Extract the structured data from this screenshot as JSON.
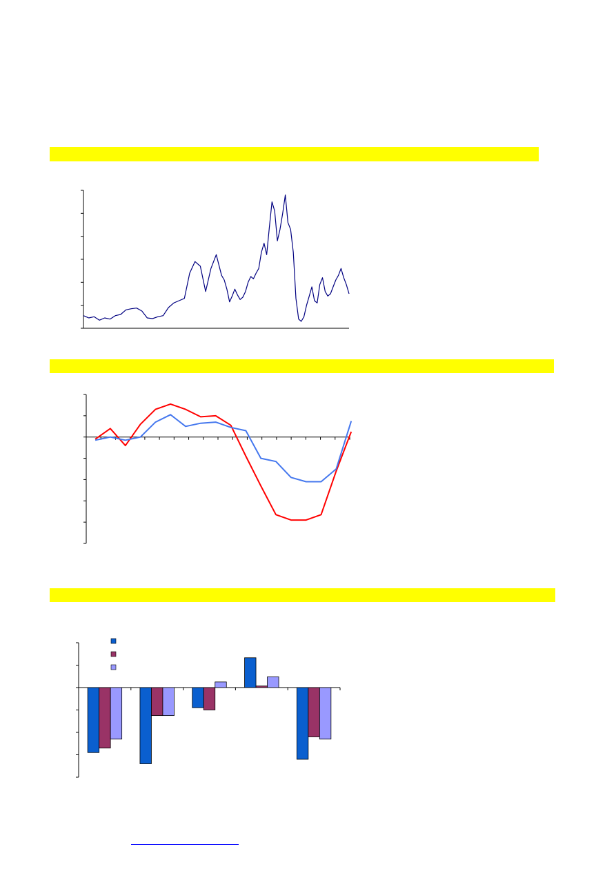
{
  "colors": {
    "highlight": "#ffff00",
    "axis": "#000000",
    "price_line": "#000080",
    "line_red": "#ff0000",
    "line_blue": "#4477ee",
    "bar_series_1": "#0a5fcf",
    "bar_series_2": "#993366",
    "bar_series_3": "#9999ff",
    "link": "#0000ff"
  },
  "sections": [
    {
      "title": ""
    },
    {
      "title": ""
    },
    {
      "title": ""
    }
  ],
  "footer": {
    "link_text": ""
  },
  "chart_data": [
    {
      "type": "line",
      "title": "",
      "xlabel": "",
      "ylabel": "",
      "ylim": [
        0,
        6
      ],
      "yticks": 6,
      "grid": false,
      "series": [
        {
          "color": "#000080",
          "x": [
            0,
            2,
            4,
            6,
            8,
            10,
            12,
            14,
            16,
            18,
            20,
            22,
            24,
            26,
            28,
            30,
            32,
            34,
            36,
            38,
            40,
            42,
            44,
            46,
            48,
            50,
            52,
            53,
            54,
            55,
            56,
            57,
            58,
            59,
            60,
            61,
            62,
            63,
            64,
            65,
            66,
            67,
            68,
            69,
            70,
            71,
            72,
            73,
            74,
            75,
            76,
            77,
            78,
            79,
            80,
            81,
            82,
            83,
            84,
            85,
            86,
            87,
            88,
            89,
            90,
            91,
            92,
            93,
            94,
            95,
            96,
            97,
            98,
            99,
            100
          ],
          "y": [
            0.55,
            0.45,
            0.5,
            0.35,
            0.45,
            0.4,
            0.55,
            0.6,
            0.8,
            0.85,
            0.88,
            0.75,
            0.45,
            0.42,
            0.5,
            0.55,
            0.9,
            1.1,
            1.2,
            1.3,
            2.4,
            2.9,
            2.7,
            1.6,
            2.6,
            3.2,
            2.3,
            2.1,
            1.7,
            1.15,
            1.4,
            1.7,
            1.45,
            1.25,
            1.35,
            1.6,
            2.0,
            2.25,
            2.15,
            2.4,
            2.6,
            3.3,
            3.7,
            3.2,
            4.4,
            5.5,
            5.1,
            3.8,
            4.3,
            5.0,
            5.8,
            4.6,
            4.3,
            3.3,
            1.3,
            0.4,
            0.3,
            0.5,
            1.0,
            1.4,
            1.8,
            1.2,
            1.1,
            1.9,
            2.2,
            1.6,
            1.4,
            1.5,
            1.8,
            2.1,
            2.3,
            2.6,
            2.2,
            1.9,
            1.5
          ]
        }
      ]
    },
    {
      "type": "line",
      "title": "",
      "xlabel": "",
      "ylabel": "",
      "ylim": [
        -5,
        2
      ],
      "yticks": 7,
      "grid": false,
      "x": [
        1,
        2,
        3,
        4,
        5,
        6,
        7,
        8,
        9,
        10,
        11,
        12,
        13,
        14,
        15,
        16,
        17,
        18
      ],
      "series": [
        {
          "color": "#ff0000",
          "values": [
            -0.1,
            0.4,
            -0.4,
            0.6,
            1.3,
            1.55,
            1.3,
            0.95,
            1.0,
            0.55,
            -0.9,
            -2.3,
            -3.65,
            -3.9,
            -3.9,
            -3.65,
            -1.6,
            0.25
          ]
        },
        {
          "color": "#4477ee",
          "values": [
            -0.15,
            0.0,
            -0.15,
            0.0,
            0.7,
            1.05,
            0.5,
            0.65,
            0.7,
            0.45,
            0.3,
            -1.0,
            -1.15,
            -1.9,
            -2.1,
            -2.1,
            -1.5,
            0.75
          ]
        }
      ]
    },
    {
      "type": "bar",
      "title": "",
      "xlabel": "",
      "ylabel": "",
      "ylim": [
        -4,
        2
      ],
      "yticks": 6,
      "grid": false,
      "legend": "top-left",
      "categories": [
        "",
        "",
        "",
        "",
        ""
      ],
      "series": [
        {
          "color": "#0a5fcf",
          "values": [
            -2.9,
            -3.4,
            -0.9,
            1.33,
            -3.2
          ]
        },
        {
          "color": "#993366",
          "values": [
            -2.7,
            -1.25,
            -1.0,
            0.07,
            -2.2
          ]
        },
        {
          "color": "#9999ff",
          "values": [
            -2.3,
            -1.25,
            0.25,
            0.48,
            -2.3
          ]
        }
      ]
    }
  ]
}
